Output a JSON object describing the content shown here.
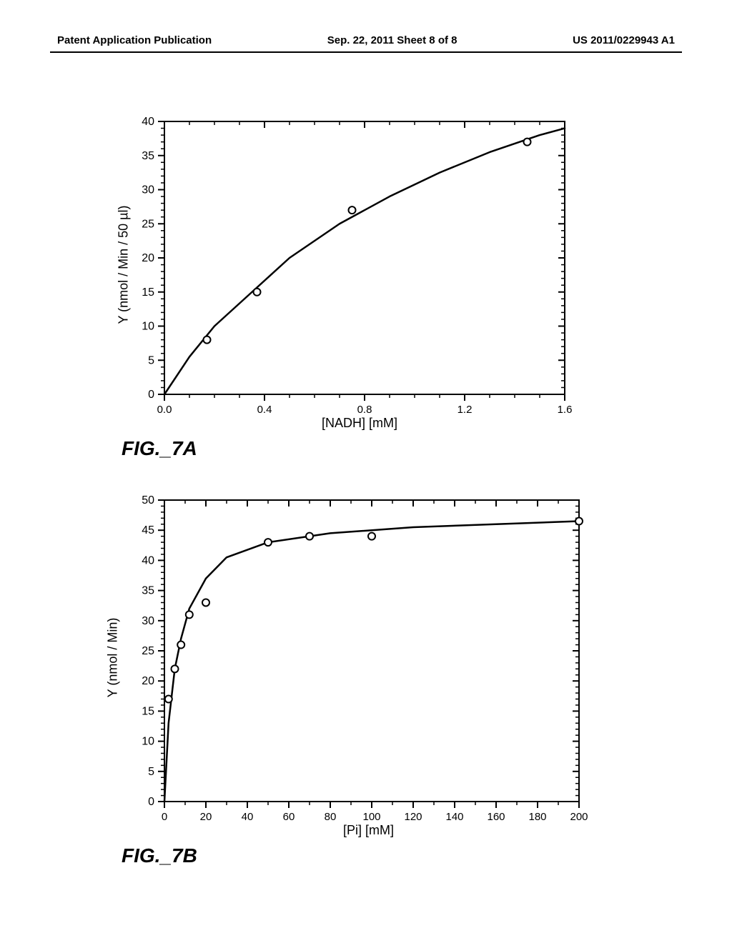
{
  "header": {
    "left": "Patent Application Publication",
    "center": "Sep. 22, 2011  Sheet 8 of 8",
    "right": "US 2011/0229943 A1"
  },
  "chartA": {
    "type": "scatter-line",
    "fig_label": "FIG._7A",
    "xlabel": "[NADH] [mM]",
    "ylabel": "Y (nmol / Min / 50 µl)",
    "xlim": [
      0,
      1.6
    ],
    "ylim": [
      0,
      40
    ],
    "xticks": [
      0.0,
      0.4,
      0.8,
      1.2,
      1.6
    ],
    "yticks": [
      0,
      5,
      10,
      15,
      20,
      25,
      30,
      35,
      40
    ],
    "marker_style": "open-circle",
    "marker_size": 10,
    "line_width": 2.5,
    "line_color": "#000000",
    "marker_color": "#000000",
    "background_color": "#ffffff",
    "data_points": [
      {
        "x": 0.17,
        "y": 8
      },
      {
        "x": 0.37,
        "y": 15
      },
      {
        "x": 0.75,
        "y": 27
      },
      {
        "x": 1.45,
        "y": 37
      }
    ],
    "curve": [
      {
        "x": 0.0,
        "y": 0
      },
      {
        "x": 0.1,
        "y": 5.5
      },
      {
        "x": 0.2,
        "y": 10
      },
      {
        "x": 0.35,
        "y": 15
      },
      {
        "x": 0.5,
        "y": 20
      },
      {
        "x": 0.7,
        "y": 25
      },
      {
        "x": 0.9,
        "y": 29
      },
      {
        "x": 1.1,
        "y": 32.5
      },
      {
        "x": 1.3,
        "y": 35.5
      },
      {
        "x": 1.5,
        "y": 38
      },
      {
        "x": 1.6,
        "y": 39
      }
    ]
  },
  "chartB": {
    "type": "scatter-line",
    "fig_label": "FIG._7B",
    "xlabel": "[Pi] [mM]",
    "ylabel": "Y (nmol / Min)",
    "xlim": [
      0,
      200
    ],
    "ylim": [
      0,
      50
    ],
    "xticks": [
      0,
      20,
      40,
      60,
      80,
      100,
      120,
      140,
      160,
      180,
      200
    ],
    "yticks": [
      0,
      5,
      10,
      15,
      20,
      25,
      30,
      35,
      40,
      45,
      50
    ],
    "marker_style": "open-circle",
    "marker_size": 10,
    "line_width": 2.5,
    "line_color": "#000000",
    "marker_color": "#000000",
    "background_color": "#ffffff",
    "data_points": [
      {
        "x": 2,
        "y": 17
      },
      {
        "x": 5,
        "y": 22
      },
      {
        "x": 8,
        "y": 26
      },
      {
        "x": 12,
        "y": 31
      },
      {
        "x": 20,
        "y": 33
      },
      {
        "x": 50,
        "y": 43
      },
      {
        "x": 70,
        "y": 44
      },
      {
        "x": 100,
        "y": 44
      },
      {
        "x": 200,
        "y": 46.5
      }
    ],
    "curve": [
      {
        "x": 0,
        "y": 0
      },
      {
        "x": 2,
        "y": 13
      },
      {
        "x": 5,
        "y": 22
      },
      {
        "x": 8,
        "y": 27
      },
      {
        "x": 12,
        "y": 32
      },
      {
        "x": 20,
        "y": 37
      },
      {
        "x": 30,
        "y": 40.5
      },
      {
        "x": 50,
        "y": 43
      },
      {
        "x": 80,
        "y": 44.5
      },
      {
        "x": 120,
        "y": 45.5
      },
      {
        "x": 160,
        "y": 46
      },
      {
        "x": 200,
        "y": 46.5
      }
    ]
  }
}
